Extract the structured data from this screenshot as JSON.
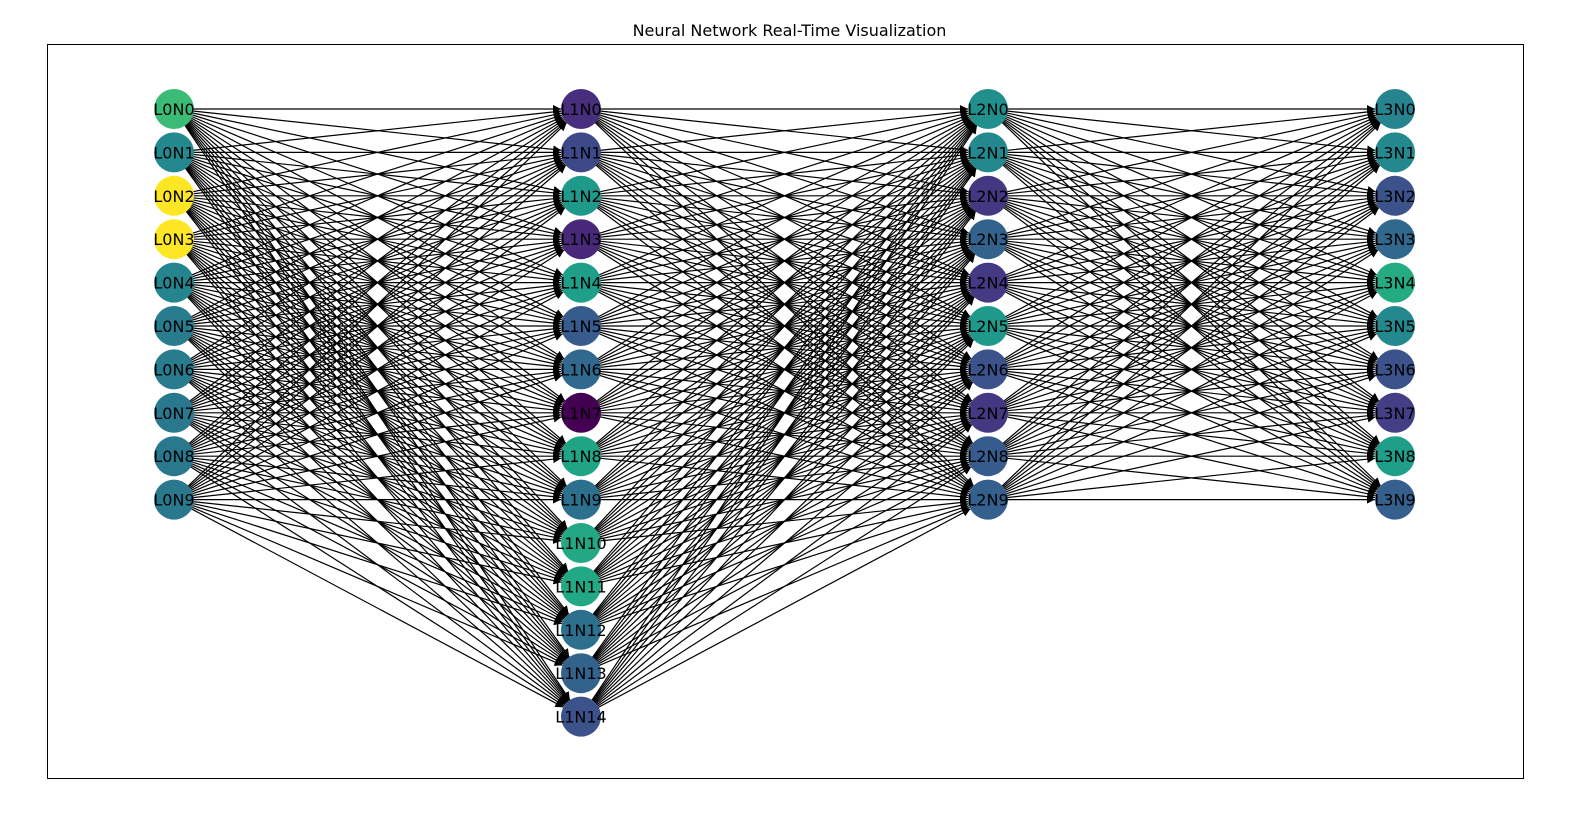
{
  "title": "Neural Network Real-Time Visualization",
  "colors": {
    "edge": "#000000",
    "frame": "#000000",
    "label": "#000000"
  },
  "layers": [
    {
      "name": "L0",
      "nodes": [
        {
          "label": "L0N0",
          "color": "#3bbb75"
        },
        {
          "label": "L0N1",
          "color": "#23898e"
        },
        {
          "label": "L0N2",
          "color": "#fde725"
        },
        {
          "label": "L0N3",
          "color": "#fde725"
        },
        {
          "label": "L0N4",
          "color": "#25858e"
        },
        {
          "label": "L0N5",
          "color": "#287c8e"
        },
        {
          "label": "L0N6",
          "color": "#287c8e"
        },
        {
          "label": "L0N7",
          "color": "#2a788e"
        },
        {
          "label": "L0N8",
          "color": "#2a788e"
        },
        {
          "label": "L0N9",
          "color": "#2a788e"
        }
      ]
    },
    {
      "name": "L1",
      "nodes": [
        {
          "label": "L1N0",
          "color": "#472f7d"
        },
        {
          "label": "L1N1",
          "color": "#3e4989"
        },
        {
          "label": "L1N2",
          "color": "#1f9a8a"
        },
        {
          "label": "L1N3",
          "color": "#482878"
        },
        {
          "label": "L1N4",
          "color": "#1f9e89"
        },
        {
          "label": "L1N5",
          "color": "#375b8d"
        },
        {
          "label": "L1N6",
          "color": "#31688e"
        },
        {
          "label": "L1N7",
          "color": "#440154"
        },
        {
          "label": "L1N8",
          "color": "#20a486"
        },
        {
          "label": "L1N9",
          "color": "#2d708e"
        },
        {
          "label": "L1N10",
          "color": "#22a884"
        },
        {
          "label": "L1N11",
          "color": "#22a884"
        },
        {
          "label": "L1N12",
          "color": "#2d708e"
        },
        {
          "label": "L1N13",
          "color": "#33638d"
        },
        {
          "label": "L1N14",
          "color": "#3b528b"
        }
      ]
    },
    {
      "name": "L2",
      "nodes": [
        {
          "label": "L2N0",
          "color": "#21908d"
        },
        {
          "label": "L2N1",
          "color": "#23898e"
        },
        {
          "label": "L2N2",
          "color": "#453882"
        },
        {
          "label": "L2N3",
          "color": "#33638d"
        },
        {
          "label": "L2N4",
          "color": "#443983"
        },
        {
          "label": "L2N5",
          "color": "#1f9a8a"
        },
        {
          "label": "L2N6",
          "color": "#3b528b"
        },
        {
          "label": "L2N7",
          "color": "#453882"
        },
        {
          "label": "L2N8",
          "color": "#375b8d"
        },
        {
          "label": "L2N9",
          "color": "#355f8d"
        }
      ]
    },
    {
      "name": "L3",
      "nodes": [
        {
          "label": "L3N0",
          "color": "#25848e"
        },
        {
          "label": "L3N1",
          "color": "#23898e"
        },
        {
          "label": "L3N2",
          "color": "#3b528b"
        },
        {
          "label": "L3N3",
          "color": "#31688e"
        },
        {
          "label": "L3N4",
          "color": "#25ab82"
        },
        {
          "label": "L3N5",
          "color": "#23898e"
        },
        {
          "label": "L3N6",
          "color": "#3b528b"
        },
        {
          "label": "L3N7",
          "color": "#433e85"
        },
        {
          "label": "L3N8",
          "color": "#1f9e89"
        },
        {
          "label": "L3N9",
          "color": "#355f8d"
        }
      ]
    }
  ]
}
